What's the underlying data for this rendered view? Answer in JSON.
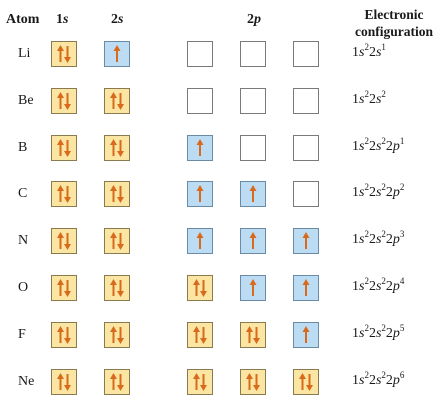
{
  "header": {
    "atom": "Atom",
    "orbital_1s_num": "1",
    "orbital_1s_letter": "s",
    "orbital_2s_num": "2",
    "orbital_2s_letter": "s",
    "orbital_2p_num": "2",
    "orbital_2p_letter": "p",
    "config_line1": "Electronic",
    "config_line2": "configuration"
  },
  "colors": {
    "filled_box": "#fae6a2",
    "half_box": "#bcdcf3",
    "empty_box": "#ffffff",
    "arrow": "#d9691c"
  },
  "rows": [
    {
      "atom": "Li",
      "orbitals": [
        2,
        1,
        0,
        0,
        0
      ],
      "config": [
        [
          "1",
          "s",
          "2"
        ],
        [
          "2",
          "s",
          "1"
        ]
      ]
    },
    {
      "atom": "Be",
      "orbitals": [
        2,
        2,
        0,
        0,
        0
      ],
      "config": [
        [
          "1",
          "s",
          "2"
        ],
        [
          "2",
          "s",
          "2"
        ]
      ]
    },
    {
      "atom": "B",
      "orbitals": [
        2,
        2,
        1,
        0,
        0
      ],
      "config": [
        [
          "1",
          "s",
          "2"
        ],
        [
          "2",
          "s",
          "2"
        ],
        [
          "2",
          "p",
          "1"
        ]
      ]
    },
    {
      "atom": "C",
      "orbitals": [
        2,
        2,
        1,
        1,
        0
      ],
      "config": [
        [
          "1",
          "s",
          "2"
        ],
        [
          "2",
          "s",
          "2"
        ],
        [
          "2",
          "p",
          "2"
        ]
      ]
    },
    {
      "atom": "N",
      "orbitals": [
        2,
        2,
        1,
        1,
        1
      ],
      "config": [
        [
          "1",
          "s",
          "2"
        ],
        [
          "2",
          "s",
          "2"
        ],
        [
          "2",
          "p",
          "3"
        ]
      ]
    },
    {
      "atom": "O",
      "orbitals": [
        2,
        2,
        2,
        1,
        1
      ],
      "config": [
        [
          "1",
          "s",
          "2"
        ],
        [
          "2",
          "s",
          "2"
        ],
        [
          "2",
          "p",
          "4"
        ]
      ]
    },
    {
      "atom": "F",
      "orbitals": [
        2,
        2,
        2,
        2,
        1
      ],
      "config": [
        [
          "1",
          "s",
          "2"
        ],
        [
          "2",
          "s",
          "2"
        ],
        [
          "2",
          "p",
          "5"
        ]
      ]
    },
    {
      "atom": "Ne",
      "orbitals": [
        2,
        2,
        2,
        2,
        2
      ],
      "config": [
        [
          "1",
          "s",
          "2"
        ],
        [
          "2",
          "s",
          "2"
        ],
        [
          "2",
          "p",
          "6"
        ]
      ]
    }
  ]
}
